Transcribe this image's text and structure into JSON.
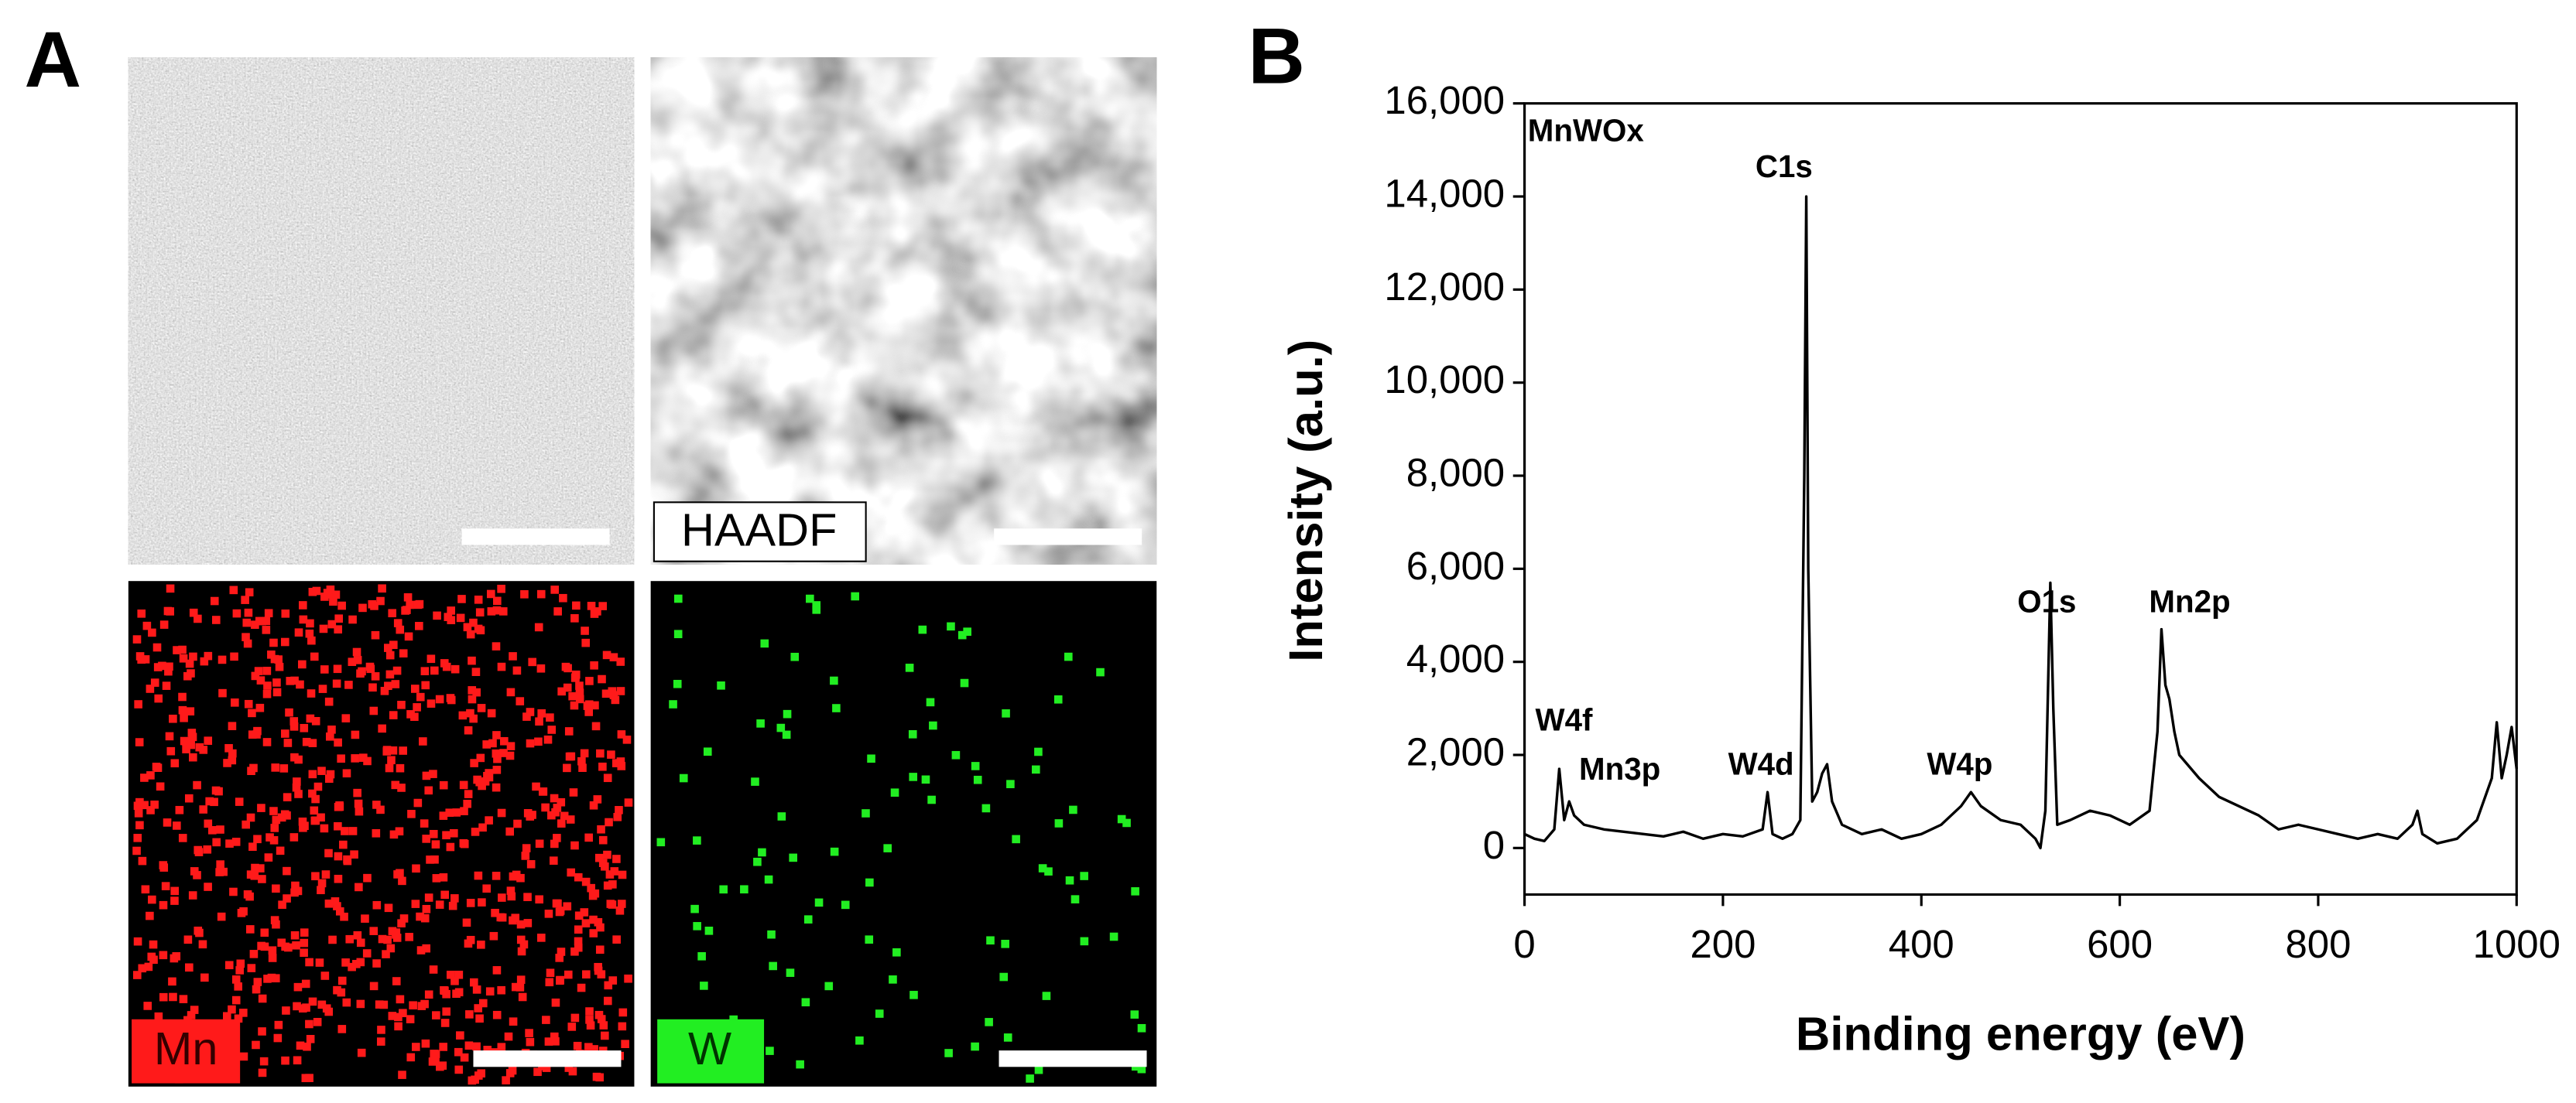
{
  "panel_a": {
    "label": "A",
    "image_labels": [
      "HAADF",
      "Mn",
      "W"
    ]
  },
  "chart_data": {
    "type": "line",
    "panel_label": "B",
    "annotations": [
      "C1s",
      "O1s",
      "Mn2p",
      "W4f",
      "Mn3p",
      "W4d",
      "W4p"
    ],
    "xlabel": "Binding energy (eV)",
    "ylabel": "Intensity (a.u.)",
    "x": [
      0,
      10,
      20,
      30,
      35,
      40,
      45,
      50,
      60,
      80,
      100,
      120,
      140,
      160,
      180,
      200,
      220,
      240,
      245,
      250,
      260,
      270,
      278,
      282,
      284,
      286,
      290,
      295,
      300,
      305,
      310,
      320,
      340,
      360,
      380,
      400,
      420,
      440,
      450,
      460,
      480,
      500,
      515,
      520,
      525,
      530,
      533,
      537,
      550,
      570,
      590,
      610,
      630,
      638,
      642,
      646,
      650,
      655,
      660,
      680,
      700,
      720,
      740,
      760,
      780,
      800,
      820,
      840,
      860,
      880,
      895,
      900,
      905,
      920,
      940,
      960,
      975,
      980,
      985,
      990,
      995,
      1000
    ],
    "series": [
      {
        "name": "MnWOx",
        "color": "#000000",
        "values": [
          300,
          200,
          150,
          400,
          1700,
          600,
          1000,
          700,
          500,
          400,
          350,
          300,
          250,
          350,
          200,
          300,
          250,
          400,
          1200,
          300,
          200,
          300,
          600,
          8000,
          14000,
          6000,
          1000,
          1200,
          1600,
          1800,
          1000,
          500,
          300,
          400,
          200,
          300,
          500,
          900,
          1200,
          900,
          600,
          500,
          200,
          0,
          800,
          5700,
          3000,
          500,
          600,
          800,
          700,
          500,
          800,
          2500,
          4700,
          3500,
          3200,
          2500,
          2000,
          1500,
          1100,
          900,
          700,
          400,
          500,
          400,
          300,
          200,
          300,
          200,
          500,
          800,
          300,
          100,
          200,
          600,
          1500,
          2700,
          1500,
          2000,
          2600,
          1700
        ]
      }
    ],
    "xlim": [
      0,
      1000
    ],
    "ylim": [
      -1000,
      16000
    ],
    "xticks": [
      0,
      200,
      400,
      600,
      800,
      1000
    ],
    "yticks": [
      0,
      {
        "value": 2000,
        "label": "2,000"
      },
      {
        "value": 4000,
        "label": "4,000"
      },
      {
        "value": 6000,
        "label": "6,000"
      },
      {
        "value": 8000,
        "label": "8,000"
      },
      {
        "value": 10000,
        "label": "10,000"
      },
      {
        "value": 12000,
        "label": "12,000"
      },
      {
        "value": 14000,
        "label": "14,000"
      },
      {
        "value": 16000,
        "label": "16,000"
      }
    ]
  }
}
